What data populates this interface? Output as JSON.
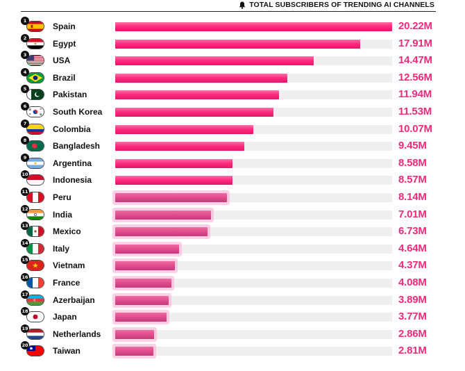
{
  "header": {
    "title": "TOTAL SUBSCRIBERS OF TRENDING AI CHANNELS",
    "icon": "bell-icon"
  },
  "colors": {
    "bar": "#ff2e7f",
    "value_text": "#ee2a7b",
    "track": "#efefef"
  },
  "chart_data": {
    "type": "bar",
    "orientation": "horizontal",
    "title": "TOTAL SUBSCRIBERS OF TRENDING AI CHANNELS",
    "unit": "M",
    "xlim": [
      0,
      20.22
    ],
    "series": [
      {
        "rank": 1,
        "country": "Spain",
        "flag": "spain-flag",
        "value": 20.22,
        "label": "20.22M"
      },
      {
        "rank": 2,
        "country": "Egypt",
        "flag": "egypt-flag",
        "value": 17.91,
        "label": "17.91M"
      },
      {
        "rank": 3,
        "country": "USA",
        "flag": "usa-flag",
        "value": 14.47,
        "label": "14.47M"
      },
      {
        "rank": 4,
        "country": "Brazil",
        "flag": "brazil-flag",
        "value": 12.56,
        "label": "12.56M"
      },
      {
        "rank": 5,
        "country": "Pakistan",
        "flag": "pakistan-flag",
        "value": 11.94,
        "label": "11.94M"
      },
      {
        "rank": 6,
        "country": "South Korea",
        "flag": "south-korea-flag",
        "value": 11.53,
        "label": "11.53M"
      },
      {
        "rank": 7,
        "country": "Colombia",
        "flag": "colombia-flag",
        "value": 10.07,
        "label": "10.07M"
      },
      {
        "rank": 8,
        "country": "Bangladesh",
        "flag": "bangladesh-flag",
        "value": 9.45,
        "label": "9.45M"
      },
      {
        "rank": 9,
        "country": "Argentina",
        "flag": "argentina-flag",
        "value": 8.58,
        "label": "8.58M"
      },
      {
        "rank": 10,
        "country": "Indonesia",
        "flag": "indonesia-flag",
        "value": 8.57,
        "label": "8.57M"
      },
      {
        "rank": 11,
        "country": "Peru",
        "flag": "peru-flag",
        "value": 8.14,
        "label": "8.14M"
      },
      {
        "rank": 12,
        "country": "India",
        "flag": "india-flag",
        "value": 7.01,
        "label": "7.01M"
      },
      {
        "rank": 13,
        "country": "Mexico",
        "flag": "mexico-flag",
        "value": 6.73,
        "label": "6.73M"
      },
      {
        "rank": 14,
        "country": "Italy",
        "flag": "italy-flag",
        "value": 4.64,
        "label": "4.64M"
      },
      {
        "rank": 15,
        "country": "Vietnam",
        "flag": "vietnam-flag",
        "value": 4.37,
        "label": "4.37M"
      },
      {
        "rank": 16,
        "country": "France",
        "flag": "france-flag",
        "value": 4.08,
        "label": "4.08M"
      },
      {
        "rank": 17,
        "country": "Azerbaijan",
        "flag": "azerbaijan-flag",
        "value": 3.89,
        "label": "3.89M"
      },
      {
        "rank": 18,
        "country": "Japan",
        "flag": "japan-flag",
        "value": 3.77,
        "label": "3.77M"
      },
      {
        "rank": 19,
        "country": "Netherlands",
        "flag": "netherlands-flag",
        "value": 2.86,
        "label": "2.86M"
      },
      {
        "rank": 20,
        "country": "Taiwan",
        "flag": "taiwan-flag",
        "value": 2.81,
        "label": "2.81M"
      }
    ]
  }
}
